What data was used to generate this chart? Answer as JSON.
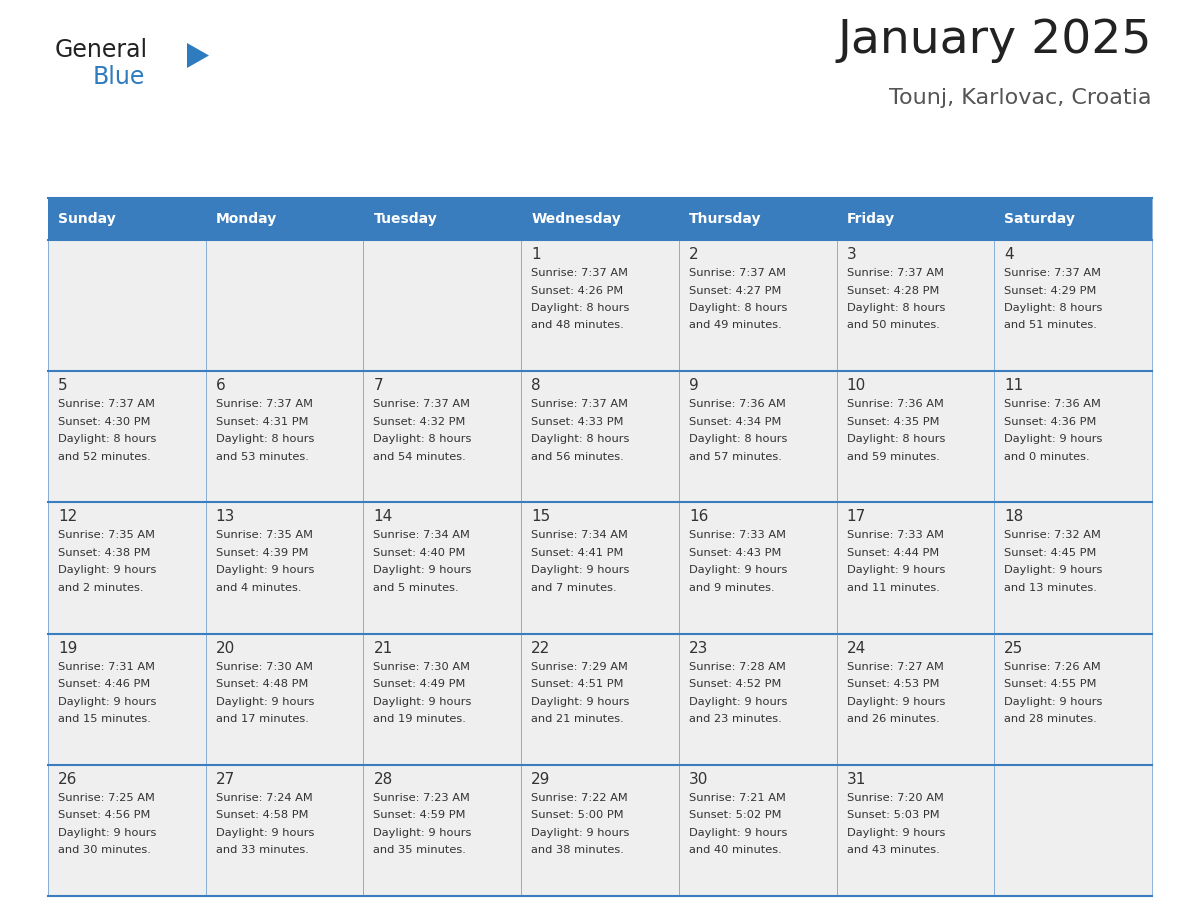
{
  "title": "January 2025",
  "subtitle": "Tounj, Karlovac, Croatia",
  "days_of_week": [
    "Sunday",
    "Monday",
    "Tuesday",
    "Wednesday",
    "Thursday",
    "Friday",
    "Saturday"
  ],
  "header_bg": "#3a7dbf",
  "header_text": "#ffffff",
  "cell_bg": "#efefef",
  "cell_border_color": "#3a7dbf",
  "separator_color": "#3a7dbf",
  "day_number_color": "#333333",
  "info_text_color": "#333333",
  "title_color": "#222222",
  "subtitle_color": "#555555",
  "logo_general_color": "#222222",
  "logo_blue_color": "#2e7bbf",
  "calendar": [
    [
      {
        "day": "",
        "sunrise": "",
        "sunset": "",
        "daylight_h": "",
        "daylight_m": ""
      },
      {
        "day": "",
        "sunrise": "",
        "sunset": "",
        "daylight_h": "",
        "daylight_m": ""
      },
      {
        "day": "",
        "sunrise": "",
        "sunset": "",
        "daylight_h": "",
        "daylight_m": ""
      },
      {
        "day": "1",
        "sunrise": "7:37 AM",
        "sunset": "4:26 PM",
        "daylight_h": "8",
        "daylight_m": "48"
      },
      {
        "day": "2",
        "sunrise": "7:37 AM",
        "sunset": "4:27 PM",
        "daylight_h": "8",
        "daylight_m": "49"
      },
      {
        "day": "3",
        "sunrise": "7:37 AM",
        "sunset": "4:28 PM",
        "daylight_h": "8",
        "daylight_m": "50"
      },
      {
        "day": "4",
        "sunrise": "7:37 AM",
        "sunset": "4:29 PM",
        "daylight_h": "8",
        "daylight_m": "51"
      }
    ],
    [
      {
        "day": "5",
        "sunrise": "7:37 AM",
        "sunset": "4:30 PM",
        "daylight_h": "8",
        "daylight_m": "52"
      },
      {
        "day": "6",
        "sunrise": "7:37 AM",
        "sunset": "4:31 PM",
        "daylight_h": "8",
        "daylight_m": "53"
      },
      {
        "day": "7",
        "sunrise": "7:37 AM",
        "sunset": "4:32 PM",
        "daylight_h": "8",
        "daylight_m": "54"
      },
      {
        "day": "8",
        "sunrise": "7:37 AM",
        "sunset": "4:33 PM",
        "daylight_h": "8",
        "daylight_m": "56"
      },
      {
        "day": "9",
        "sunrise": "7:36 AM",
        "sunset": "4:34 PM",
        "daylight_h": "8",
        "daylight_m": "57"
      },
      {
        "day": "10",
        "sunrise": "7:36 AM",
        "sunset": "4:35 PM",
        "daylight_h": "8",
        "daylight_m": "59"
      },
      {
        "day": "11",
        "sunrise": "7:36 AM",
        "sunset": "4:36 PM",
        "daylight_h": "9",
        "daylight_m": "0"
      }
    ],
    [
      {
        "day": "12",
        "sunrise": "7:35 AM",
        "sunset": "4:38 PM",
        "daylight_h": "9",
        "daylight_m": "2"
      },
      {
        "day": "13",
        "sunrise": "7:35 AM",
        "sunset": "4:39 PM",
        "daylight_h": "9",
        "daylight_m": "4"
      },
      {
        "day": "14",
        "sunrise": "7:34 AM",
        "sunset": "4:40 PM",
        "daylight_h": "9",
        "daylight_m": "5"
      },
      {
        "day": "15",
        "sunrise": "7:34 AM",
        "sunset": "4:41 PM",
        "daylight_h": "9",
        "daylight_m": "7"
      },
      {
        "day": "16",
        "sunrise": "7:33 AM",
        "sunset": "4:43 PM",
        "daylight_h": "9",
        "daylight_m": "9"
      },
      {
        "day": "17",
        "sunrise": "7:33 AM",
        "sunset": "4:44 PM",
        "daylight_h": "9",
        "daylight_m": "11"
      },
      {
        "day": "18",
        "sunrise": "7:32 AM",
        "sunset": "4:45 PM",
        "daylight_h": "9",
        "daylight_m": "13"
      }
    ],
    [
      {
        "day": "19",
        "sunrise": "7:31 AM",
        "sunset": "4:46 PM",
        "daylight_h": "9",
        "daylight_m": "15"
      },
      {
        "day": "20",
        "sunrise": "7:30 AM",
        "sunset": "4:48 PM",
        "daylight_h": "9",
        "daylight_m": "17"
      },
      {
        "day": "21",
        "sunrise": "7:30 AM",
        "sunset": "4:49 PM",
        "daylight_h": "9",
        "daylight_m": "19"
      },
      {
        "day": "22",
        "sunrise": "7:29 AM",
        "sunset": "4:51 PM",
        "daylight_h": "9",
        "daylight_m": "21"
      },
      {
        "day": "23",
        "sunrise": "7:28 AM",
        "sunset": "4:52 PM",
        "daylight_h": "9",
        "daylight_m": "23"
      },
      {
        "day": "24",
        "sunrise": "7:27 AM",
        "sunset": "4:53 PM",
        "daylight_h": "9",
        "daylight_m": "26"
      },
      {
        "day": "25",
        "sunrise": "7:26 AM",
        "sunset": "4:55 PM",
        "daylight_h": "9",
        "daylight_m": "28"
      }
    ],
    [
      {
        "day": "26",
        "sunrise": "7:25 AM",
        "sunset": "4:56 PM",
        "daylight_h": "9",
        "daylight_m": "30"
      },
      {
        "day": "27",
        "sunrise": "7:24 AM",
        "sunset": "4:58 PM",
        "daylight_h": "9",
        "daylight_m": "33"
      },
      {
        "day": "28",
        "sunrise": "7:23 AM",
        "sunset": "4:59 PM",
        "daylight_h": "9",
        "daylight_m": "35"
      },
      {
        "day": "29",
        "sunrise": "7:22 AM",
        "sunset": "5:00 PM",
        "daylight_h": "9",
        "daylight_m": "38"
      },
      {
        "day": "30",
        "sunrise": "7:21 AM",
        "sunset": "5:02 PM",
        "daylight_h": "9",
        "daylight_m": "40"
      },
      {
        "day": "31",
        "sunrise": "7:20 AM",
        "sunset": "5:03 PM",
        "daylight_h": "9",
        "daylight_m": "43"
      },
      {
        "day": "",
        "sunrise": "",
        "sunset": "",
        "daylight_h": "",
        "daylight_m": ""
      }
    ]
  ]
}
